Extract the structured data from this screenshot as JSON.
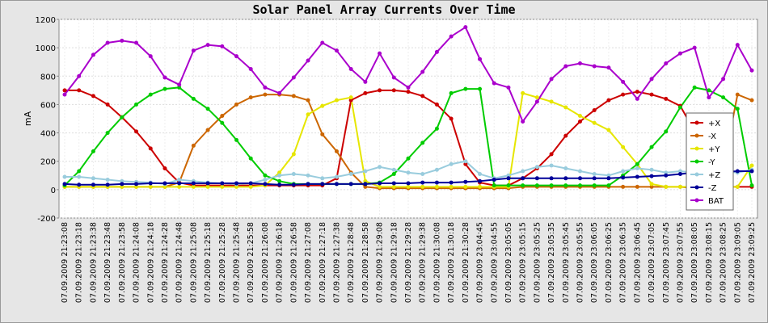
{
  "chart_data": {
    "type": "line",
    "title": "Solar Panel Array Currents Over Time",
    "y_label": "mA",
    "categories": [
      "07.09.2009 21:23:08",
      "07.09.2009 21:23:18",
      "07.09.2009 21:23:38",
      "07.09.2009 21:23:48",
      "07.09.2009 21:23:58",
      "07.09.2009 21:24:08",
      "07.09.2009 21:24:18",
      "07.09.2009 21:24:28",
      "07.09.2009 21:24:48",
      "07.09.2009 21:25:08",
      "07.09.2009 21:25:18",
      "07.09.2009 21:25:28",
      "07.09.2009 21:25:48",
      "07.09.2009 21:25:58",
      "07.09.2009 21:26:08",
      "07.09.2009 21:26:18",
      "07.09.2009 21:26:58",
      "07.09.2009 21:27:08",
      "07.09.2009 21:27:18",
      "07.09.2009 21:27:38",
      "07.09.2009 21:28:48",
      "07.09.2009 21:28:58",
      "07.09.2009 21:29:08",
      "07.09.2009 21:29:18",
      "07.09.2009 21:29:28",
      "07.09.2009 21:29:38",
      "07.09.2009 21:30:08",
      "07.09.2009 21:30:18",
      "07.09.2009 21:30:28",
      "07.09.2009 23:04:45",
      "07.09.2009 23:04:55",
      "07.09.2009 23:05:05",
      "07.09.2009 23:05:15",
      "07.09.2009 23:05:25",
      "07.09.2009 23:05:35",
      "07.09.2009 23:05:45",
      "07.09.2009 23:05:55",
      "07.09.2009 23:06:05",
      "07.09.2009 23:06:25",
      "07.09.2009 23:06:35",
      "07.09.2009 23:06:45",
      "07.09.2009 23:07:05",
      "07.09.2009 23:07:45",
      "07.09.2009 23:07:55",
      "07.09.2009 23:08:05",
      "07.09.2009 23:08:15",
      "07.09.2009 23:08:25",
      "07.09.2009 23:09:05",
      "07.09.2009 23:09:25"
    ],
    "series": [
      {
        "name": "+X",
        "color": "#cc0000",
        "values": [
          700,
          700,
          660,
          600,
          510,
          410,
          290,
          150,
          50,
          30,
          30,
          30,
          30,
          30,
          30,
          30,
          30,
          30,
          30,
          80,
          630,
          680,
          700,
          700,
          690,
          660,
          600,
          500,
          180,
          50,
          30,
          30,
          80,
          150,
          250,
          380,
          480,
          560,
          630,
          670,
          690,
          670,
          640,
          590,
          410,
          30,
          20,
          20,
          20
        ]
      },
      {
        "name": "-X",
        "color": "#cc6600",
        "values": [
          20,
          20,
          20,
          20,
          20,
          20,
          20,
          20,
          50,
          310,
          420,
          520,
          600,
          650,
          670,
          670,
          660,
          630,
          390,
          270,
          120,
          20,
          10,
          10,
          10,
          10,
          10,
          10,
          10,
          10,
          10,
          10,
          20,
          20,
          20,
          20,
          20,
          20,
          20,
          20,
          20,
          20,
          20,
          20,
          10,
          40,
          150,
          670,
          630
        ]
      },
      {
        "name": "+Y",
        "color": "#e6e600",
        "values": [
          20,
          20,
          20,
          20,
          20,
          20,
          20,
          20,
          20,
          20,
          20,
          20,
          20,
          20,
          30,
          120,
          250,
          530,
          590,
          630,
          650,
          60,
          20,
          20,
          20,
          20,
          20,
          20,
          20,
          20,
          20,
          20,
          680,
          650,
          620,
          580,
          520,
          470,
          420,
          300,
          180,
          40,
          20,
          20,
          20,
          20,
          20,
          20,
          170
        ]
      },
      {
        "name": "-Y",
        "color": "#00cc00",
        "values": [
          30,
          130,
          270,
          400,
          510,
          600,
          670,
          710,
          720,
          640,
          570,
          470,
          350,
          220,
          100,
          60,
          40,
          40,
          40,
          40,
          40,
          40,
          50,
          110,
          220,
          330,
          430,
          680,
          710,
          710,
          30,
          30,
          30,
          30,
          30,
          30,
          30,
          30,
          30,
          100,
          180,
          300,
          410,
          580,
          720,
          700,
          650,
          570,
          30
        ]
      },
      {
        "name": "+Z",
        "color": "#99ccdd",
        "values": [
          90,
          90,
          80,
          70,
          60,
          55,
          50,
          40,
          70,
          60,
          50,
          45,
          40,
          45,
          70,
          100,
          110,
          100,
          80,
          90,
          110,
          130,
          160,
          140,
          120,
          110,
          140,
          180,
          200,
          110,
          80,
          100,
          130,
          160,
          170,
          150,
          130,
          110,
          100,
          130,
          150,
          140,
          120,
          130,
          120,
          110,
          130,
          120,
          140
        ]
      },
      {
        "name": "-Z",
        "color": "#000099",
        "values": [
          40,
          35,
          35,
          35,
          40,
          40,
          45,
          45,
          45,
          45,
          45,
          45,
          45,
          45,
          40,
          35,
          35,
          40,
          40,
          40,
          40,
          40,
          45,
          45,
          45,
          50,
          50,
          50,
          55,
          60,
          70,
          80,
          80,
          80,
          80,
          80,
          80,
          80,
          80,
          85,
          90,
          95,
          100,
          110,
          120,
          125,
          125,
          130,
          130
        ]
      },
      {
        "name": "BAT",
        "color": "#aa00cc",
        "values": [
          670,
          800,
          950,
          1035,
          1050,
          1035,
          940,
          790,
          740,
          980,
          1020,
          1010,
          940,
          850,
          720,
          680,
          790,
          910,
          1035,
          980,
          850,
          760,
          960,
          790,
          720,
          830,
          970,
          1080,
          1145,
          920,
          750,
          720,
          480,
          620,
          780,
          870,
          890,
          870,
          860,
          760,
          640,
          780,
          890,
          960,
          1000,
          650,
          780,
          1020,
          840
        ]
      }
    ],
    "ylim": [
      -200,
      1200
    ],
    "yticks": [
      -200,
      0,
      200,
      400,
      600,
      800,
      1000,
      1200
    ],
    "grid": true,
    "legend": "right"
  }
}
